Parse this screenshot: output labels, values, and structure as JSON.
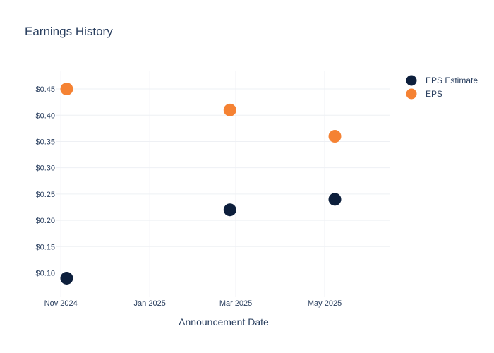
{
  "chart_data": {
    "type": "scatter",
    "title": "Earnings History",
    "xlabel": "Announcement Date",
    "ylabel": "",
    "x_ticks": [
      {
        "date": "2024-11-01",
        "label": "Nov 2024"
      },
      {
        "date": "2025-01-01",
        "label": "Jan 2025"
      },
      {
        "date": "2025-03-01",
        "label": "Mar 2025"
      },
      {
        "date": "2025-05-01",
        "label": "May 2025"
      }
    ],
    "xlim": [
      "2024-10-29",
      "2025-06-15"
    ],
    "y_ticks": [
      {
        "value": 0.1,
        "label": "$0.10"
      },
      {
        "value": 0.15,
        "label": "$0.15"
      },
      {
        "value": 0.2,
        "label": "$0.20"
      },
      {
        "value": 0.25,
        "label": "$0.25"
      },
      {
        "value": 0.3,
        "label": "$0.30"
      },
      {
        "value": 0.35,
        "label": "$0.35"
      },
      {
        "value": 0.4,
        "label": "$0.40"
      },
      {
        "value": 0.45,
        "label": "$0.45"
      }
    ],
    "ylim": [
      0.055,
      0.485
    ],
    "grid": true,
    "legend_position": "top-right",
    "series": [
      {
        "name": "EPS Estimate",
        "color": "#0d1f3c",
        "points": [
          {
            "x": "2024-11-05",
            "y": 0.09
          },
          {
            "x": "2025-02-25",
            "y": 0.22
          },
          {
            "x": "2025-05-08",
            "y": 0.24
          }
        ]
      },
      {
        "name": "EPS",
        "color": "#f58233",
        "points": [
          {
            "x": "2024-11-05",
            "y": 0.45
          },
          {
            "x": "2025-02-25",
            "y": 0.41
          },
          {
            "x": "2025-05-08",
            "y": 0.36
          }
        ]
      }
    ]
  }
}
